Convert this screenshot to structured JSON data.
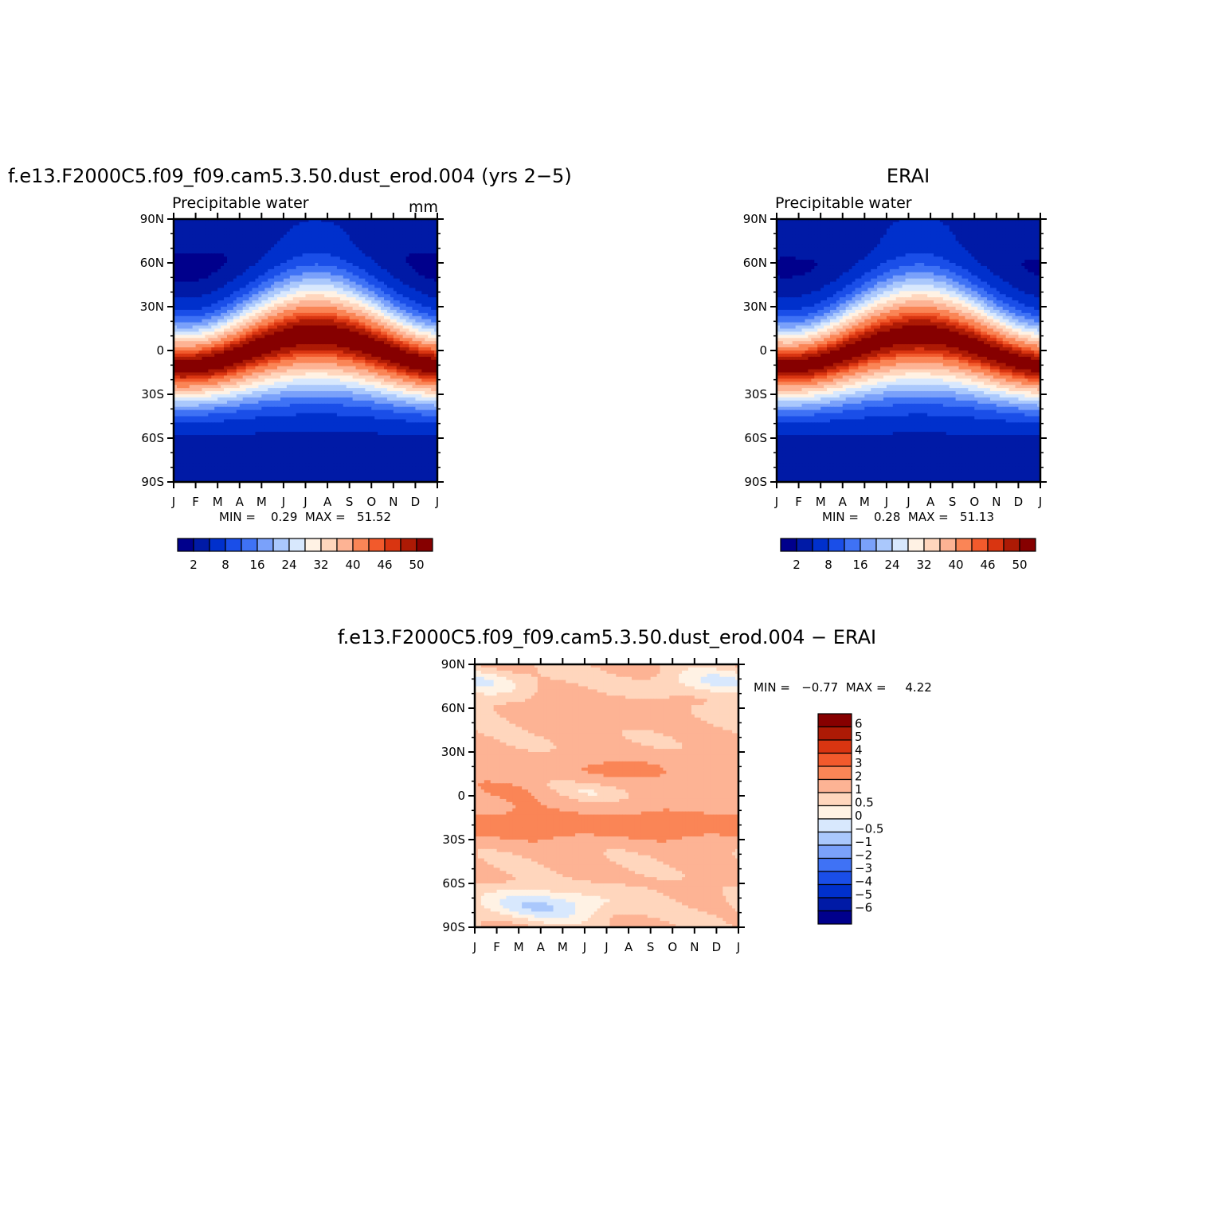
{
  "months": [
    "J",
    "F",
    "M",
    "A",
    "M",
    "J",
    "J",
    "A",
    "S",
    "O",
    "N",
    "D",
    "J"
  ],
  "lat_ticks": [
    "90N",
    "60N",
    "30N",
    "0",
    "30S",
    "60S",
    "90S"
  ],
  "seq_colors": [
    "#00008c",
    "#001aa6",
    "#0030cc",
    "#1a4ee8",
    "#3f72f5",
    "#7aa1fa",
    "#aac8fc",
    "#d8e8fd",
    "#fff2e4",
    "#ffd6bd",
    "#fdb394",
    "#fa8556",
    "#f25a2c",
    "#d93511",
    "#ad1a05",
    "#860000"
  ],
  "diff_colors": [
    "#860000",
    "#ad1a05",
    "#d93511",
    "#f25a2c",
    "#fa8556",
    "#fdb394",
    "#ffd6bd",
    "#fff2e4",
    "#d8e8fd",
    "#aac8fc",
    "#7aa1fa",
    "#3f72f5",
    "#1a4ee8",
    "#0030cc",
    "#001aa6",
    "#00008c"
  ],
  "chart_data": [
    {
      "type": "heatmap",
      "title": "f.e13.F2000C5.f09_f09.cam5.3.50.dust_erod.004 (yrs 2−5)",
      "subtitle": "Precipitable  water",
      "units": "mm",
      "x_label": "",
      "y_label": "",
      "x_ticks": [
        "J",
        "F",
        "M",
        "A",
        "M",
        "J",
        "J",
        "A",
        "S",
        "O",
        "N",
        "D",
        "J"
      ],
      "y_ticks": [
        "90N",
        "60N",
        "30N",
        "0",
        "30S",
        "60S",
        "90S"
      ],
      "min_text": "MIN =    0.29  MAX =   51.52",
      "min": 0.29,
      "max": 51.52,
      "colorbar_levels": [
        2,
        4,
        8,
        12,
        16,
        20,
        24,
        28,
        32,
        36,
        40,
        44,
        46,
        48,
        50
      ],
      "colorbar_labels": [
        "2",
        "8",
        "16",
        "24",
        "32",
        "40",
        "46",
        "50"
      ],
      "pattern": {
        "peak_lat_range": [
          -8,
          12
        ],
        "peak_month": "Aug"
      }
    },
    {
      "type": "heatmap",
      "title": "ERAI",
      "subtitle": "Precipitable  water",
      "x_ticks": [
        "J",
        "F",
        "M",
        "A",
        "M",
        "J",
        "J",
        "A",
        "S",
        "O",
        "N",
        "D",
        "J"
      ],
      "y_ticks": [
        "90N",
        "60N",
        "30N",
        "0",
        "30S",
        "60S",
        "90S"
      ],
      "min_text": "MIN =    0.28  MAX =   51.13",
      "min": 0.28,
      "max": 51.13,
      "colorbar_levels": [
        2,
        4,
        8,
        12,
        16,
        20,
        24,
        28,
        32,
        36,
        40,
        44,
        46,
        48,
        50
      ],
      "colorbar_labels": [
        "2",
        "8",
        "16",
        "24",
        "32",
        "40",
        "46",
        "50"
      ]
    },
    {
      "type": "heatmap",
      "title": "f.e13.F2000C5.f09_f09.cam5.3.50.dust_erod.004  −  ERAI",
      "x_ticks": [
        "J",
        "F",
        "M",
        "A",
        "M",
        "J",
        "J",
        "A",
        "S",
        "O",
        "N",
        "D",
        "J"
      ],
      "y_ticks": [
        "90N",
        "60N",
        "30N",
        "0",
        "30S",
        "60S",
        "90S"
      ],
      "min_text": "MIN =   −0.77  MAX =     4.22",
      "min": -0.77,
      "max": 4.22,
      "colorbar_levels": [
        6,
        5,
        4,
        3,
        2,
        1,
        0.5,
        0,
        -0.5,
        -1,
        -2,
        -3,
        -4,
        -5,
        -6
      ],
      "colorbar_labels": [
        "6",
        "5",
        "4",
        "3",
        "2",
        "1",
        "0.5",
        "0",
        "−0.5",
        "−1",
        "−2",
        "−3",
        "−4",
        "−5",
        "−6"
      ]
    }
  ]
}
